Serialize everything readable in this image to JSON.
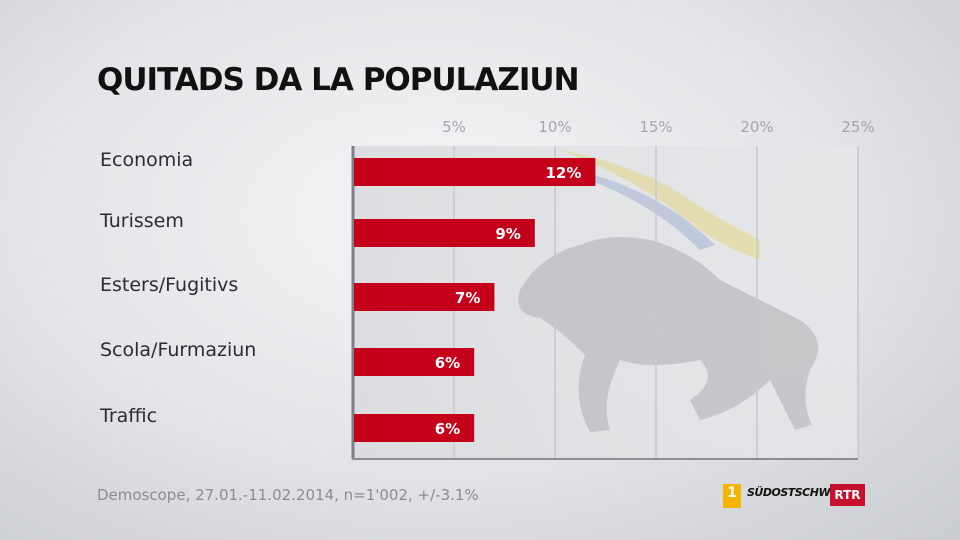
{
  "title": "QUITADS DA LA POPULAZIUN",
  "source": "Demoscope, 27.01.-11.02.2014, n=1'002, +/-3.1%",
  "logos": {
    "rtr_one": "1",
    "suedostschweiz": "SÜDOSTSCHWEIZ",
    "rtr": "RTR"
  },
  "colors": {
    "bar": "#c4001a",
    "grid": "#c6c8cb",
    "axis": "#7d8085"
  },
  "chart_data": {
    "type": "bar",
    "orientation": "horizontal",
    "title": "QUITADS DA LA POPULAZIUN",
    "categories": [
      "Economia",
      "Turissem",
      "Esters/Fugitivs",
      "Scola/Furmaziun",
      "Traffic"
    ],
    "values": [
      12,
      9,
      7,
      6,
      6
    ],
    "data_labels": [
      "12%",
      "9%",
      "7%",
      "6%",
      "6%"
    ],
    "xlim": [
      0,
      25
    ],
    "xticks": [
      5,
      10,
      15,
      20,
      25
    ],
    "xtick_labels": [
      "5%",
      "10%",
      "15%",
      "20%",
      "25%"
    ],
    "xlabel": "",
    "ylabel": "",
    "grid": true,
    "axis_position": "top"
  }
}
